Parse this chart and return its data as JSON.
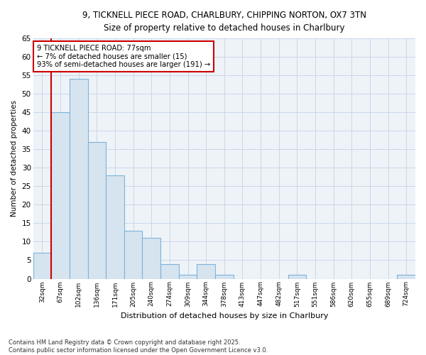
{
  "title_line1": "9, TICKNELL PIECE ROAD, CHARLBURY, CHIPPING NORTON, OX7 3TN",
  "title_line2": "Size of property relative to detached houses in Charlbury",
  "xlabel": "Distribution of detached houses by size in Charlbury",
  "ylabel": "Number of detached properties",
  "categories": [
    "32sqm",
    "67sqm",
    "102sqm",
    "136sqm",
    "171sqm",
    "205sqm",
    "240sqm",
    "274sqm",
    "309sqm",
    "344sqm",
    "378sqm",
    "413sqm",
    "447sqm",
    "482sqm",
    "517sqm",
    "551sqm",
    "586sqm",
    "620sqm",
    "655sqm",
    "689sqm",
    "724sqm"
  ],
  "values": [
    7,
    45,
    54,
    37,
    28,
    13,
    11,
    4,
    1,
    4,
    1,
    0,
    0,
    0,
    1,
    0,
    0,
    0,
    0,
    0,
    1
  ],
  "bar_color": "#d6e4f0",
  "bar_edge_color": "#7eb3d8",
  "grid_color": "#c8d8e8",
  "annotation_box_edge": "#cc0000",
  "annotation_line_color": "#cc0000",
  "annotation_text_line1": "9 TICKNELL PIECE ROAD: 77sqm",
  "annotation_text_line2": "← 7% of detached houses are smaller (15)",
  "annotation_text_line3": "93% of semi-detached houses are larger (191) →",
  "vline_x_index": 1,
  "ylim": [
    0,
    65
  ],
  "yticks": [
    0,
    5,
    10,
    15,
    20,
    25,
    30,
    35,
    40,
    45,
    50,
    55,
    60,
    65
  ],
  "footnote_line1": "Contains HM Land Registry data © Crown copyright and database right 2025.",
  "footnote_line2": "Contains public sector information licensed under the Open Government Licence v3.0.",
  "bg_color": "#ffffff",
  "plot_bg_color": "#eef3f8"
}
